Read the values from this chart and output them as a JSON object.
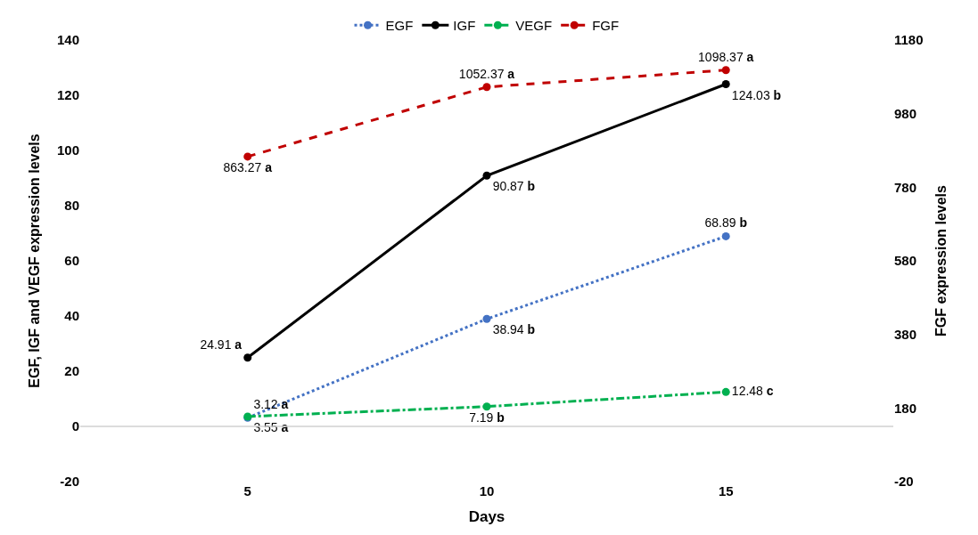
{
  "chart_data": {
    "type": "line",
    "xlabel": "Days",
    "ylabel": "EGF, IGF and VEGF expression levels",
    "y2label": "FGF expression levels",
    "categories": [
      "5",
      "10",
      "15"
    ],
    "ylim": [
      -20,
      140
    ],
    "yticks": [
      -20,
      0,
      20,
      40,
      60,
      80,
      100,
      120,
      140
    ],
    "y2lim": [
      -20,
      1180
    ],
    "y2ticks": [
      -20,
      180,
      380,
      580,
      780,
      980,
      1180
    ],
    "legend": "top",
    "ref_lines": [
      {
        "axis": "y",
        "value": 0,
        "color": "#d0d0d0"
      }
    ],
    "marker": "circle",
    "series": [
      {
        "name": "EGF",
        "color": "#4472c4",
        "line_style": "dotted",
        "values": [
          3.12,
          38.94,
          68.89
        ],
        "value_labels": [
          "3.12 a",
          "38.94 b",
          "68.89 b"
        ]
      },
      {
        "name": "IGF",
        "color": "#000000",
        "line_style": "solid",
        "values": [
          24.91,
          90.87,
          124.03
        ],
        "value_labels": [
          "24.91 a",
          "90.87 b",
          "124.03 b"
        ]
      },
      {
        "name": "VEGF",
        "color": "#00b050",
        "line_style": "dashdot",
        "values": [
          3.55,
          7.19,
          12.48
        ],
        "value_labels": [
          "3.55 a",
          "7.19 b",
          "12.48 c"
        ]
      },
      {
        "name": "FGF",
        "color": "#c00000",
        "line_style": "dashed",
        "axis": "y2",
        "values": [
          863.27,
          1052.37,
          1098.37
        ],
        "value_labels": [
          "863.27 a",
          "1052.37 a",
          "1098.37 a"
        ]
      }
    ]
  }
}
